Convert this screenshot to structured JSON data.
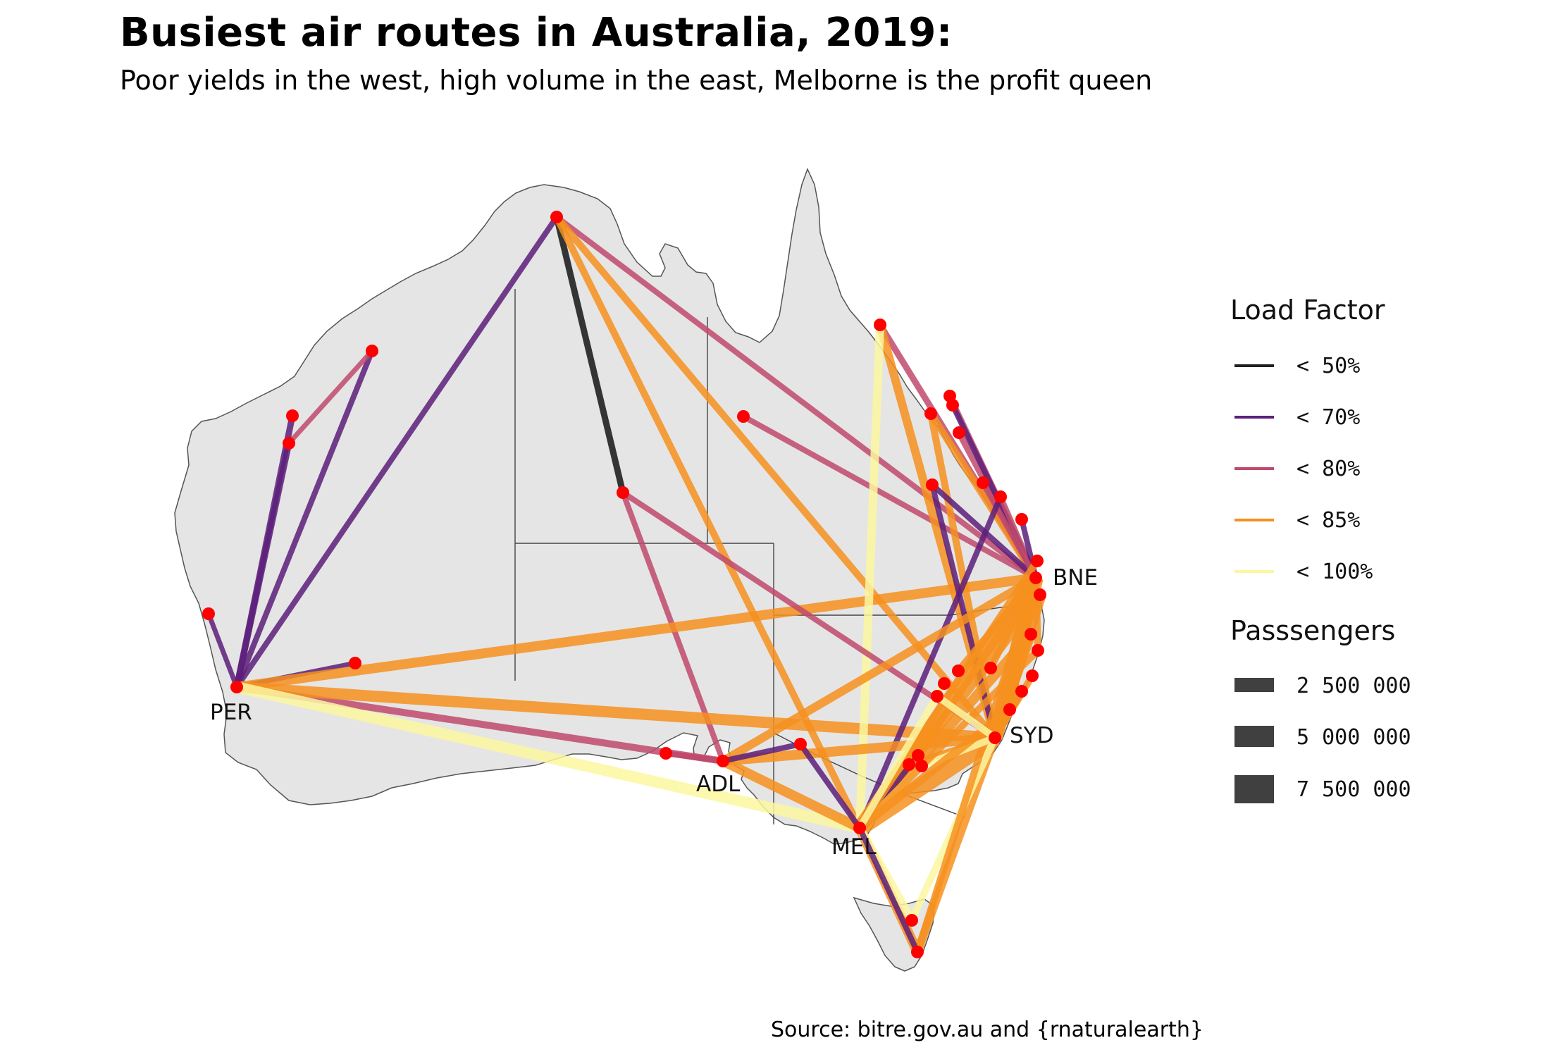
{
  "title": "Busiest air routes in Australia, 2019:",
  "subtitle": "Poor yields in the west, high volume in the east, Melborne is the profit queen",
  "caption": "Source: bitre.gov.au and {rnaturalearth}",
  "colors": {
    "land": "#e5e5e5",
    "border": "#444444",
    "airport": "#ff0000",
    "lf_50": "#202020",
    "lf_70": "#5c1f7a",
    "lf_80": "#c04a6c",
    "lf_85": "#f6901e",
    "lf_100": "#fbf7a0"
  },
  "cities": [
    {
      "code": "PER"
    },
    {
      "code": "BNE"
    },
    {
      "code": "SYD"
    },
    {
      "code": "ADL"
    },
    {
      "code": "MEL"
    }
  ],
  "legend": {
    "load_factor_title": "Load Factor",
    "load_factor_items": [
      {
        "label": "< 50%",
        "color_key": "lf_50"
      },
      {
        "label": "< 70%",
        "color_key": "lf_70"
      },
      {
        "label": "< 80%",
        "color_key": "lf_80"
      },
      {
        "label": "< 85%",
        "color_key": "lf_85"
      },
      {
        "label": "< 100%",
        "color_key": "lf_100"
      }
    ],
    "passengers_title": "Passsengers",
    "passengers_items": [
      {
        "label": "2 500 000",
        "value": 2500000
      },
      {
        "label": "5 000 000",
        "value": 5000000
      },
      {
        "label": "7 500 000",
        "value": 7500000
      }
    ]
  }
}
